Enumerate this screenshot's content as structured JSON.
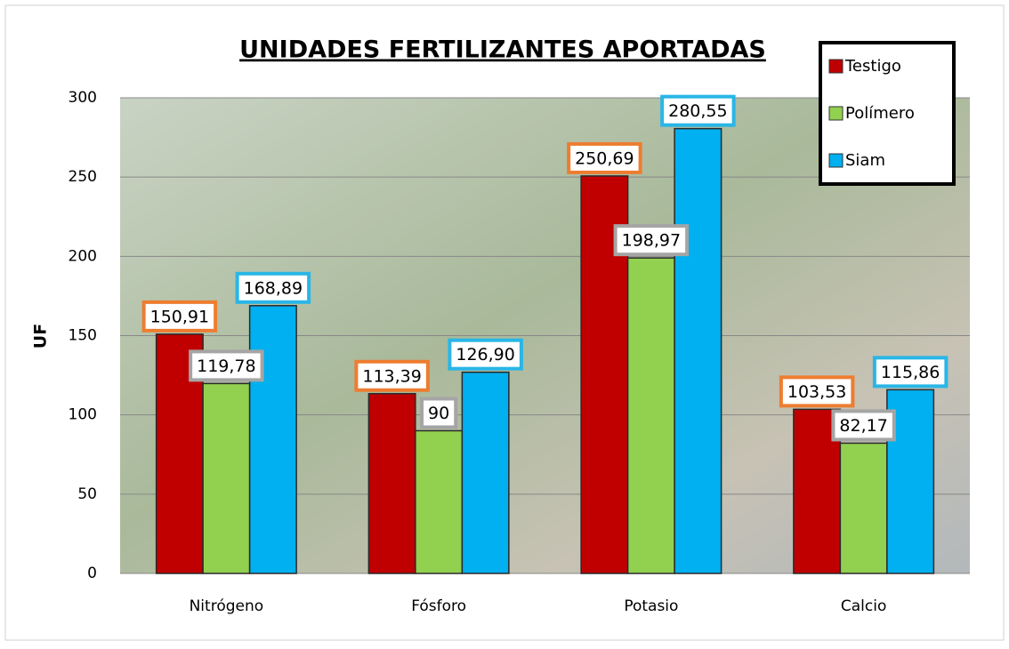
{
  "chart_data": {
    "type": "bar",
    "title": "UNIDADES FERTILIZANTES APORTADAS",
    "y_label": "UF",
    "categories": [
      "Nitrógeno",
      "Fósforo",
      "Potasio",
      "Calcio"
    ],
    "series": [
      {
        "name": "Testigo",
        "color": "#c00000",
        "label_color": "#ed7d31",
        "values": [
          150.91,
          113.39,
          250.69,
          103.53
        ],
        "value_labels": [
          "150,91",
          "113,39",
          "250,69",
          "103,53"
        ]
      },
      {
        "name": "Polímero",
        "color": "#92d050",
        "label_color": "#a5a5a5",
        "values": [
          119.78,
          90,
          198.97,
          82.17
        ],
        "value_labels": [
          "119,78",
          "90",
          "198,97",
          "82,17"
        ]
      },
      {
        "name": "Siam",
        "color": "#00b0f0",
        "label_color": "#29b6e6",
        "values": [
          168.89,
          126.9,
          280.55,
          115.86
        ],
        "value_labels": [
          "168,89",
          "126,90",
          "280,55",
          "115,86"
        ]
      }
    ],
    "ylim": [
      0,
      300
    ],
    "yticks": [
      0,
      50,
      100,
      150,
      200,
      250,
      300
    ],
    "grid": true,
    "legend": "top-right"
  }
}
